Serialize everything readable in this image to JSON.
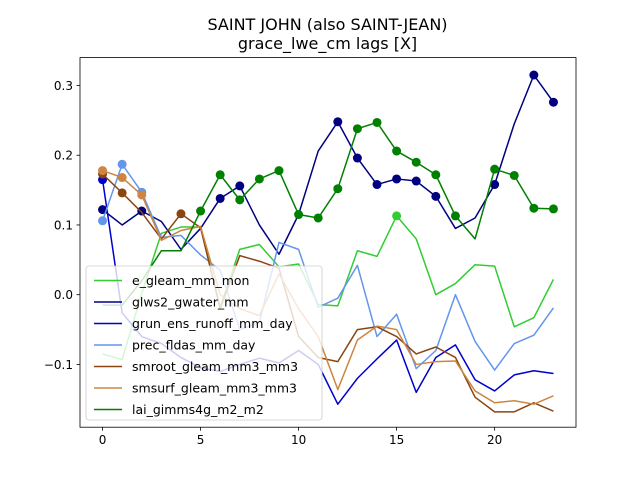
{
  "chart_data": {
    "type": "line",
    "title": "SAINT JOHN (also SAINT-JEAN)",
    "subtitle": "grace_lwe_cm lags [X]",
    "xlabel": "",
    "ylabel": "",
    "xlim": [
      -1.15,
      24.15
    ],
    "ylim": [
      -0.19,
      0.34
    ],
    "x_ticks": [
      0,
      5,
      10,
      15,
      20
    ],
    "y_ticks": [
      -0.1,
      0.0,
      0.1,
      0.2,
      0.3
    ],
    "x_tick_labels": [
      "0",
      "5",
      "10",
      "15",
      "20"
    ],
    "y_tick_labels": [
      "−0.1",
      "0.0",
      "0.1",
      "0.2",
      "0.3"
    ],
    "grid": false,
    "legend_position": "lower-left",
    "x": [
      0,
      1,
      2,
      3,
      4,
      5,
      6,
      7,
      8,
      9,
      10,
      11,
      12,
      13,
      14,
      15,
      16,
      17,
      18,
      19,
      20,
      21,
      22,
      23
    ],
    "series": [
      {
        "name": "e_gleam_mm_mon",
        "color": "#32cd32",
        "values": [
          -0.085,
          -0.093,
          0.002,
          0.088,
          0.097,
          0.097,
          -0.018,
          0.065,
          0.072,
          0.04,
          0.044,
          -0.014,
          -0.016,
          0.063,
          0.055,
          0.113,
          0.08,
          0.0,
          0.016,
          0.043,
          0.041,
          -0.046,
          -0.033,
          0.022
        ],
        "markers": [
          15
        ]
      },
      {
        "name": "glws2_gwater_mm",
        "color": "#000080",
        "values": [
          0.122,
          0.1,
          0.12,
          0.105,
          0.065,
          0.095,
          0.138,
          0.156,
          0.1,
          0.058,
          0.115,
          0.206,
          0.248,
          0.196,
          0.158,
          0.166,
          0.163,
          0.141,
          0.095,
          0.11,
          0.158,
          0.245,
          0.315,
          0.276
        ],
        "markers": [
          0,
          2,
          6,
          7,
          12,
          13,
          14,
          15,
          16,
          17,
          20,
          22,
          23
        ]
      },
      {
        "name": "grun_ens_runoff_mm_day",
        "color": "#0000cd",
        "values": [
          0.165,
          -0.026,
          -0.06,
          -0.07,
          -0.09,
          -0.105,
          -0.11,
          -0.1,
          -0.091,
          -0.098,
          -0.08,
          -0.1,
          -0.157,
          -0.12,
          -0.092,
          -0.065,
          -0.14,
          -0.09,
          -0.072,
          -0.122,
          -0.138,
          -0.115,
          -0.109,
          -0.113
        ],
        "markers": [
          0
        ]
      },
      {
        "name": "prec_fldas_mm_day",
        "color": "#6495ed",
        "values": [
          0.106,
          0.187,
          0.147,
          0.082,
          0.085,
          0.057,
          0.035,
          -0.05,
          -0.04,
          0.075,
          0.065,
          -0.018,
          -0.005,
          0.042,
          -0.06,
          -0.028,
          -0.106,
          -0.08,
          0.0,
          -0.067,
          -0.108,
          -0.07,
          -0.058,
          -0.019
        ],
        "markers": [
          0,
          1,
          2
        ]
      },
      {
        "name": "smroot_gleam_mm3_mm3",
        "color": "#8b4513",
        "values": [
          0.173,
          0.146,
          0.118,
          0.08,
          0.116,
          0.096,
          -0.02,
          0.056,
          0.048,
          0.038,
          -0.06,
          -0.09,
          -0.096,
          -0.05,
          -0.046,
          -0.06,
          -0.085,
          -0.075,
          -0.09,
          -0.147,
          -0.168,
          -0.168,
          -0.155,
          -0.167
        ],
        "markers": [
          0,
          1,
          4
        ]
      },
      {
        "name": "smsurf_gleam_mm3_mm3",
        "color": "#cd853f",
        "values": [
          0.178,
          0.168,
          0.143,
          0.078,
          0.092,
          0.098,
          0.0,
          -0.02,
          -0.03,
          0.03,
          -0.02,
          -0.06,
          -0.136,
          -0.065,
          -0.045,
          -0.05,
          -0.1,
          -0.096,
          -0.095,
          -0.138,
          -0.155,
          -0.152,
          -0.157,
          -0.145
        ],
        "markers": [
          0,
          1,
          2
        ]
      },
      {
        "name": "lai_gimms4g_m2_m2",
        "color": "#008000",
        "values": [
          -0.015,
          -0.015,
          0.02,
          0.063,
          0.063,
          0.12,
          0.172,
          0.136,
          0.166,
          0.178,
          0.115,
          0.11,
          0.152,
          0.238,
          0.247,
          0.206,
          0.19,
          0.172,
          0.113,
          0.08,
          0.18,
          0.171,
          0.124,
          0.123
        ],
        "markers": [
          5,
          6,
          7,
          8,
          9,
          10,
          11,
          12,
          13,
          14,
          15,
          16,
          17,
          18,
          20,
          21,
          22,
          23
        ]
      }
    ]
  }
}
